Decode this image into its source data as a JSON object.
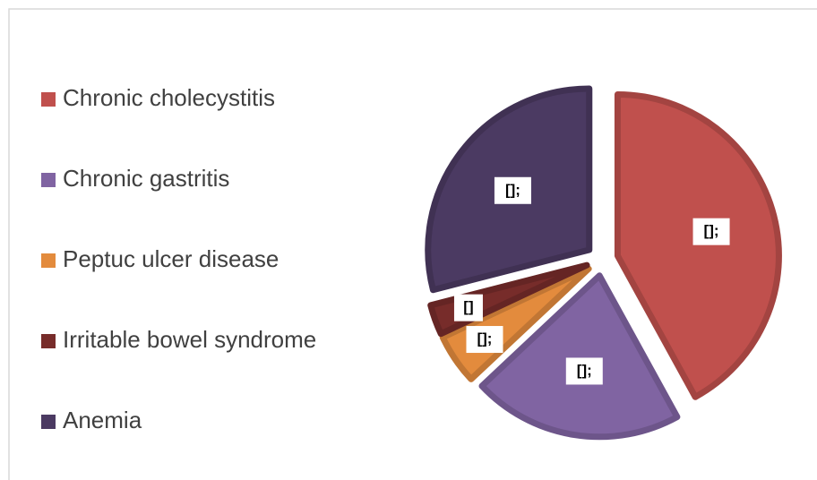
{
  "chart_data": {
    "type": "pie",
    "categories": [
      "Chronic cholecystitis",
      "Chronic gastritis",
      "Peptuc ulcer disease",
      "Irritable bowel syndrome",
      "Anemia"
    ],
    "values": [
      42,
      21,
      5,
      3,
      29
    ],
    "value_labels": [
      "[];",
      "[];",
      "[];",
      "[]",
      "[];"
    ],
    "colors": [
      "#c0504d",
      "#8064a2",
      "#e38b3d",
      "#772c2a",
      "#4b3a62"
    ],
    "legend": "left"
  }
}
